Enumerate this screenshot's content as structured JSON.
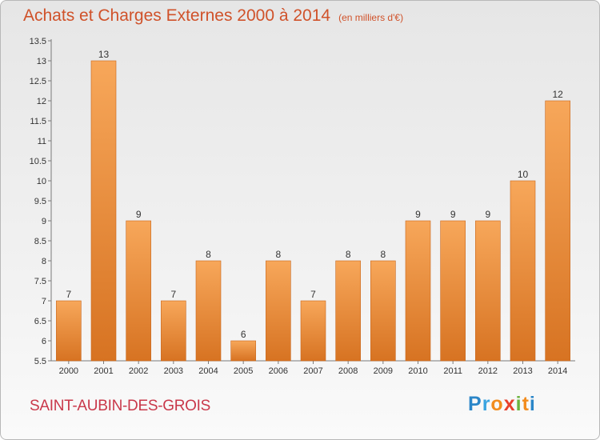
{
  "title": "Achats et Charges Externes 2000 à 2014",
  "subtitle": "(en milliers d'€)",
  "commune": "SAINT-AUBIN-DES-GROIS",
  "logo": {
    "letters": [
      "P",
      "r",
      "o",
      "x",
      "i",
      "t",
      "i"
    ],
    "colors": [
      "#2b86c8",
      "#3aa4e0",
      "#f28c1e",
      "#e8402c",
      "#6cb33f",
      "#f28c1e",
      "#2b86c8"
    ]
  },
  "colors": {
    "bar": "#f39a45",
    "bar_dark": "#d87424",
    "title": "#d0522a",
    "commune": "#c9384a"
  },
  "chart_data": {
    "type": "bar",
    "categories": [
      "2000",
      "2001",
      "2002",
      "2003",
      "2004",
      "2005",
      "2006",
      "2007",
      "2008",
      "2009",
      "2010",
      "2011",
      "2012",
      "2013",
      "2014"
    ],
    "values": [
      7,
      13,
      9,
      7,
      8,
      6,
      8,
      7,
      8,
      8,
      9,
      9,
      9,
      10,
      12
    ],
    "data_labels": [
      "7",
      "13",
      "9",
      "7",
      "8",
      "6",
      "8",
      "7",
      "8",
      "8",
      "9",
      "9",
      "9",
      "10",
      "12"
    ],
    "y_ticks": [
      "5.5",
      "6",
      "6.5",
      "7",
      "7.5",
      "8",
      "8.5",
      "9",
      "9.5",
      "10",
      "10.5",
      "11",
      "11.5",
      "12",
      "12.5",
      "13",
      "13.5"
    ],
    "ylim": [
      5.5,
      13.5
    ],
    "grid": false,
    "xlabel": "",
    "ylabel": ""
  }
}
